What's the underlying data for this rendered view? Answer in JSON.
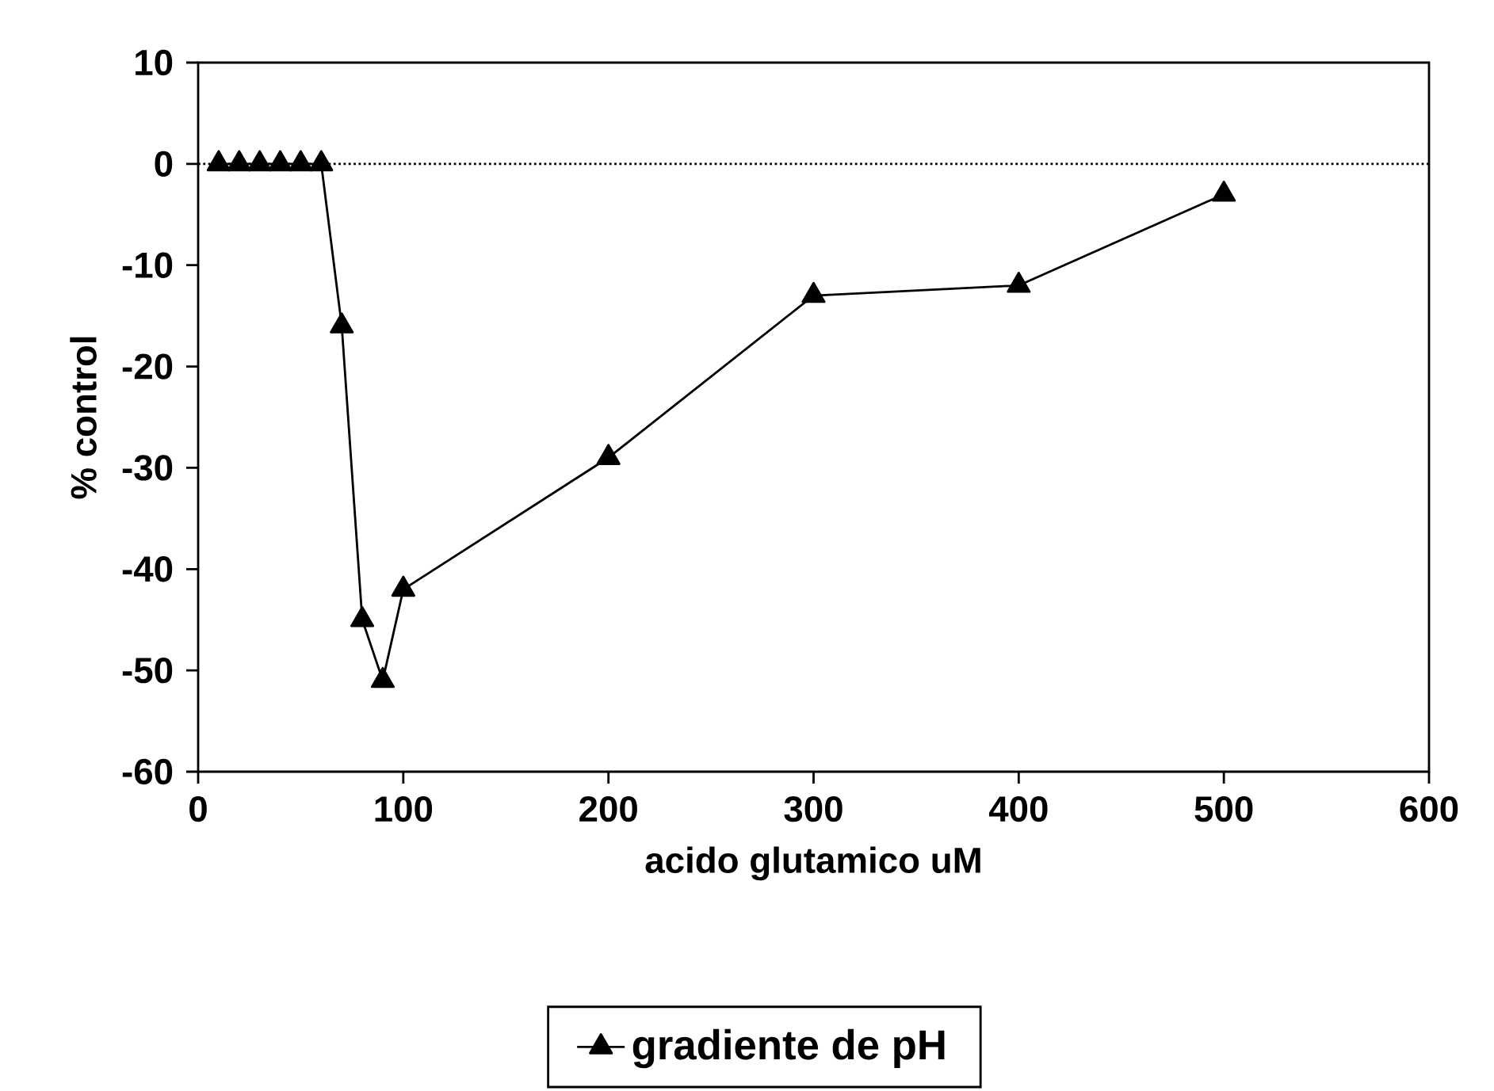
{
  "chart_data": {
    "type": "line",
    "xlabel": "acido glutamico uM",
    "ylabel": "% control",
    "series": [
      {
        "name": "gradiente de pH",
        "color": "#000000",
        "x": [
          10,
          20,
          30,
          40,
          50,
          60,
          70,
          80,
          90,
          100,
          200,
          300,
          400,
          500
        ],
        "values": [
          0,
          0,
          0,
          0,
          0,
          0,
          -16,
          -45,
          -51,
          -42,
          -29,
          -13,
          -12,
          -3
        ]
      }
    ],
    "xlim": [
      0,
      600
    ],
    "xticks": [
      0,
      100,
      200,
      300,
      400,
      500,
      600
    ],
    "ylim": [
      -60,
      10
    ],
    "yticks": [
      -60,
      -50,
      -40,
      -30,
      -20,
      -10,
      0,
      10
    ],
    "ref_lines": [
      {
        "axis": "y",
        "value": 0,
        "line_style": "dotted"
      }
    ],
    "marker": "triangle",
    "line_style": "solid",
    "legend": "bottom",
    "grid": false
  }
}
